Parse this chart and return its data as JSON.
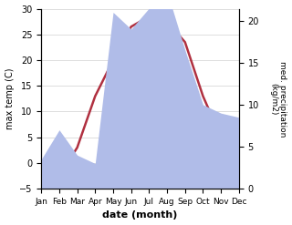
{
  "months": [
    "Jan",
    "Feb",
    "Mar",
    "Apr",
    "May",
    "Jun",
    "Jul",
    "Aug",
    "Sep",
    "Oct",
    "Nov",
    "Dec"
  ],
  "temp": [
    -0.5,
    -2.5,
    3.0,
    13.0,
    20.0,
    26.5,
    28.5,
    27.5,
    23.5,
    13.0,
    5.0,
    4.0
  ],
  "precip": [
    3.5,
    7.0,
    4.0,
    3.0,
    21.0,
    19.0,
    21.5,
    23.5,
    16.5,
    10.0,
    9.0,
    8.5
  ],
  "temp_color": "#b03040",
  "precip_fill_color": "#b0bce8",
  "ylim_temp": [
    -5,
    30
  ],
  "ylim_precip": [
    0,
    21.43
  ],
  "yticks_right": [
    0,
    5,
    10,
    15,
    20
  ],
  "yticks_left": [
    -5,
    0,
    5,
    10,
    15,
    20,
    25,
    30
  ],
  "xlabel": "date (month)",
  "ylabel_left": "max temp (C)",
  "ylabel_right": "med. precipitation\n(kg/m2)",
  "bg_color": "#ffffff",
  "grid_color": "#d0d0d0"
}
